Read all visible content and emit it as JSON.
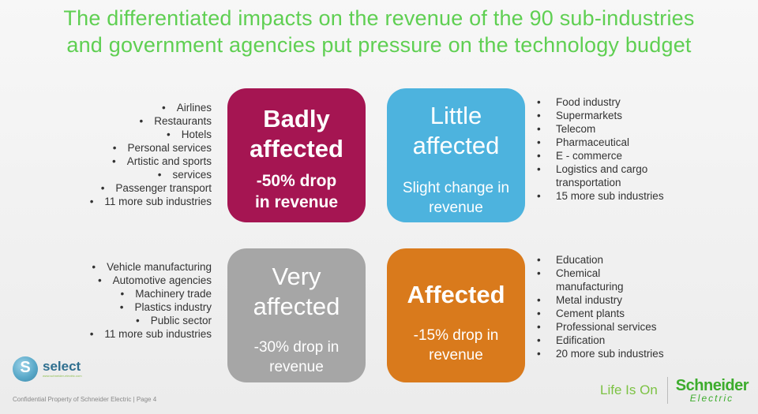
{
  "title_line1": "The differentiated impacts on the revenue of the 90 sub-industries",
  "title_line2": "and government agencies put pressure on the technology budget",
  "boxes": {
    "badly": {
      "line1": "Badly",
      "line2": "affected",
      "sub1": "-50% drop",
      "sub2": "in revenue",
      "color": "#a51552"
    },
    "little": {
      "line1": "Little",
      "line2": "affected",
      "sub1": "Slight change in",
      "sub2": "revenue",
      "color": "#4db3de"
    },
    "very": {
      "line1": "Very",
      "line2": "affected",
      "sub1": "-30% drop in",
      "sub2": "revenue",
      "color": "#a6a6a6"
    },
    "affected": {
      "line1": "Affected",
      "sub1": "-15% drop in",
      "sub2": "revenue",
      "color": "#d97a1c"
    }
  },
  "lists": {
    "badly": [
      "Airlines",
      "Restaurants",
      "Hotels",
      "Personal services",
      "Artistic and sports",
      "services",
      "Passenger transport",
      "11 more sub industries"
    ],
    "little": [
      "Food industry",
      "Supermarkets",
      "Telecom",
      "Pharmaceutical",
      "E - commerce",
      "Logistics and cargo",
      "transportation",
      "15 more sub industries"
    ],
    "very": [
      "Vehicle manufacturing",
      "Automotive agencies",
      "Machinery trade",
      "Plastics industry",
      "Public sector",
      "11 more sub industries"
    ],
    "affected": [
      "Education",
      "Chemical",
      "manufacturing",
      "Metal industry",
      "Cement plants",
      "Professional services",
      "Edification",
      "20 more sub industries"
    ]
  },
  "logo": {
    "name": "select",
    "tagline": "www.schneider-electric.com"
  },
  "footer_note": "Confidential Property of Schneider Electric | Page 4",
  "brand": {
    "slogan": "Life Is On",
    "name1": "Schneider",
    "name2": "Electric"
  },
  "accent_color": "#5fcf52"
}
